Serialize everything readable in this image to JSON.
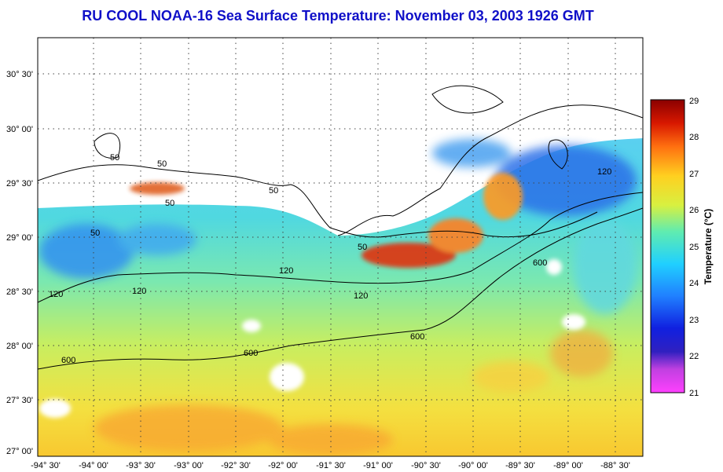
{
  "title": "RU COOL  NOAA-16  Sea Surface Temperature:  November 03, 2003 1926 GMT",
  "map": {
    "lon_labels": [
      "-94° 30'",
      "-94° 00'",
      "-93° 30'",
      "-93° 00'",
      "-92° 30'",
      "-92° 00'",
      "-91° 30'",
      "-91° 00'",
      "-90° 30'",
      "-90° 00'",
      "-89° 30'",
      "-89° 00'",
      "-88° 30'"
    ],
    "lat_labels": [
      "30° 30'",
      "30° 00'",
      "29° 30'",
      "29° 00'",
      "28° 30'",
      "28° 00'",
      "27° 30'",
      "27° 00'"
    ],
    "contour_labels": [
      "50",
      "50",
      "50",
      "50",
      "50",
      "50",
      "120",
      "120",
      "120",
      "120",
      "120",
      "600",
      "600",
      "600",
      "600"
    ],
    "grid": true
  },
  "colorbar": {
    "label": "Temperature (°C)",
    "ticks": [
      "29",
      "28",
      "27",
      "26",
      "25",
      "24",
      "23",
      "22",
      "21"
    ],
    "min": 21,
    "max": 29,
    "colors": [
      "#ff40ff",
      "#9030d0",
      "#1010d0",
      "#1f60ff",
      "#20c8ff",
      "#50e8b0",
      "#d8f040",
      "#ffd020",
      "#ff7010",
      "#e02000",
      "#900000"
    ]
  }
}
